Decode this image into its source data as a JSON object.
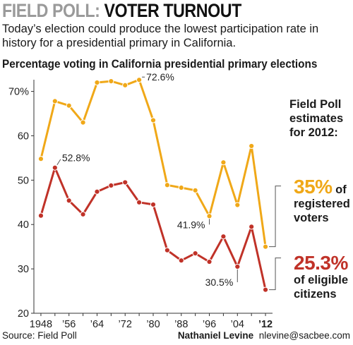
{
  "header": {
    "kicker": "FIELD POLL:",
    "title": "VOTER TURNOUT",
    "dek": "Today’s election could produce the lowest participation rate in history for a presidential primary in California."
  },
  "side_panel": {
    "heading": "Field Poll estimates for 2012:",
    "registered_value": "35%",
    "registered_suffix": "of",
    "registered_label": "registered voters",
    "eligible_value": "25.3%",
    "eligible_suffix": "of eligible",
    "eligible_label": "citizens"
  },
  "footer": {
    "source": "Source: Field Poll",
    "author": "Nathaniel Levine",
    "email": "nlevine@sacbee.com"
  },
  "chart_data": {
    "type": "line",
    "title": "Percentage voting in California presidential primary elections",
    "xlabel": "",
    "ylabel": "",
    "x": [
      1948,
      1952,
      1956,
      1960,
      1964,
      1968,
      1972,
      1976,
      1980,
      1984,
      1988,
      1992,
      1996,
      2000,
      2004,
      2008,
      2012
    ],
    "x_tick_labels": [
      "1948",
      "’56",
      "’64",
      "’72",
      "’80",
      "’88",
      "’96",
      "’04",
      "’12"
    ],
    "x_tick_values": [
      1948,
      1956,
      1964,
      1972,
      1980,
      1988,
      1996,
      2004,
      2012
    ],
    "ylim": [
      20,
      72
    ],
    "y_ticks": [
      20,
      30,
      40,
      50,
      60,
      70
    ],
    "y_tick_labels": [
      "20",
      "30",
      "40",
      "50",
      "60",
      "70%"
    ],
    "grid": false,
    "series": [
      {
        "name": "registered voters",
        "color": "#f0a818",
        "values": [
          54.8,
          67.8,
          66.8,
          63.0,
          72.0,
          72.3,
          71.4,
          72.6,
          63.5,
          48.9,
          48.3,
          47.7,
          41.9,
          54.0,
          44.4,
          57.7,
          35.0
        ]
      },
      {
        "name": "eligible citizens",
        "color": "#c03228",
        "values": [
          42.0,
          52.8,
          45.4,
          42.3,
          47.4,
          48.8,
          49.5,
          45.0,
          44.5,
          34.2,
          31.9,
          33.5,
          31.6,
          37.3,
          30.5,
          39.5,
          25.3
        ]
      }
    ],
    "annotations": [
      {
        "series": 0,
        "x": 1976,
        "text": "72.6%"
      },
      {
        "series": 0,
        "x": 1996,
        "text": "41.9%"
      },
      {
        "series": 1,
        "x": 1952,
        "text": "52.8%"
      },
      {
        "series": 1,
        "x": 2004,
        "text": "30.5%"
      }
    ]
  }
}
